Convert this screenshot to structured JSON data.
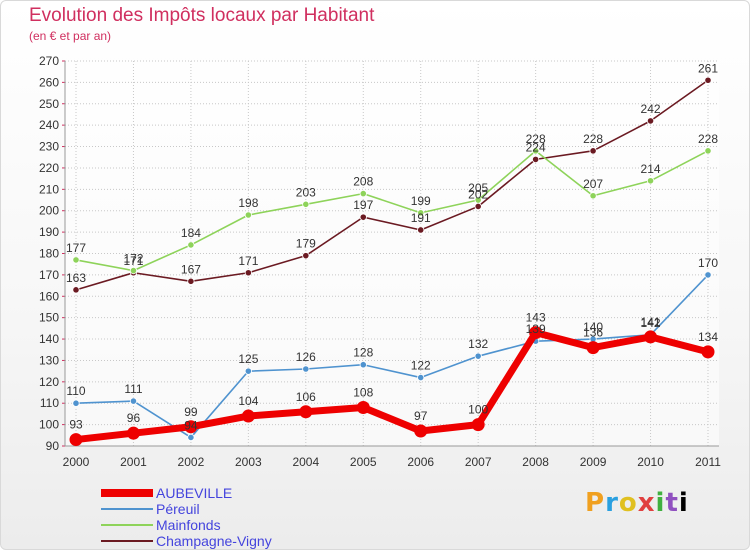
{
  "header": {
    "title": "Evolution des Impôts locaux par Habitant",
    "subtitle": "(en € et par an)"
  },
  "logo": {
    "text": "Proxiti"
  },
  "chart_data": {
    "type": "line",
    "title": "Evolution des Impôts locaux par Habitant",
    "subtitle": "(en € et par an)",
    "x": [
      "2000",
      "2001",
      "2002",
      "2003",
      "2004",
      "2005",
      "2006",
      "2007",
      "2008",
      "2009",
      "2010",
      "2011"
    ],
    "ylim": [
      90,
      270
    ],
    "yticks": [
      90,
      100,
      110,
      120,
      130,
      140,
      150,
      160,
      170,
      180,
      190,
      200,
      210,
      220,
      230,
      240,
      250,
      260,
      270
    ],
    "grid": true,
    "legend_position": "bottom-left",
    "series": [
      {
        "name": "AUBEVILLE",
        "color": "#ee0000",
        "values": [
          93,
          96,
          99,
          104,
          106,
          108,
          97,
          100,
          143,
          136,
          141,
          134
        ]
      },
      {
        "name": "Péreuil",
        "color": "#4f93cf",
        "values": [
          110,
          111,
          94,
          125,
          126,
          128,
          122,
          132,
          139,
          140,
          142,
          170
        ]
      },
      {
        "name": "Mainfonds",
        "color": "#8ed35a",
        "values": [
          177,
          172,
          184,
          198,
          203,
          208,
          199,
          205,
          228,
          207,
          214,
          228
        ]
      },
      {
        "name": "Champagne-Vigny",
        "color": "#6b1a22",
        "values": [
          163,
          171,
          167,
          171,
          179,
          197,
          191,
          202,
          224,
          228,
          242,
          261
        ]
      }
    ]
  }
}
